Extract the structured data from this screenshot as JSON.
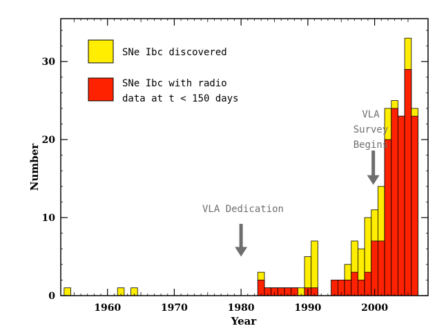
{
  "chart_data": {
    "type": "bar",
    "xlabel": "Year",
    "ylabel": "Number",
    "xlim": [
      1953,
      2008
    ],
    "ylim": [
      0,
      35.5
    ],
    "xticks": [
      1960,
      1970,
      1980,
      1990,
      2000
    ],
    "yticks": [
      0,
      10,
      20,
      30
    ],
    "colors": {
      "discovered": "#ffee00",
      "radio": "#ff2200",
      "annotation": "#6e6e6e"
    },
    "series": [
      {
        "name": "SNe Ibc discovered",
        "x": [
          1954,
          1962,
          1964,
          1983,
          1984,
          1985,
          1986,
          1987,
          1988,
          1989,
          1990,
          1991,
          1994,
          1995,
          1996,
          1997,
          1998,
          1999,
          2000,
          2001,
          2002,
          2003,
          2004,
          2005,
          2006
        ],
        "values": [
          1,
          1,
          1,
          3,
          1,
          1,
          1,
          1,
          1,
          1,
          5,
          7,
          2,
          2,
          4,
          7,
          6,
          10,
          11,
          14,
          24,
          25,
          23,
          33,
          24
        ]
      },
      {
        "name": "SNe Ibc with radio data at t < 150 days",
        "x": [
          1954,
          1962,
          1964,
          1983,
          1984,
          1985,
          1986,
          1987,
          1988,
          1989,
          1990,
          1991,
          1994,
          1995,
          1996,
          1997,
          1998,
          1999,
          2000,
          2001,
          2002,
          2003,
          2004,
          2005,
          2006
        ],
        "values": [
          0,
          0,
          0,
          2,
          1,
          1,
          1,
          1,
          1,
          0,
          1,
          1,
          2,
          2,
          2,
          3,
          2,
          3,
          7,
          7,
          20,
          24,
          23,
          29,
          23
        ]
      }
    ],
    "legend": {
      "position": "top-left",
      "entries": [
        "SNe Ibc discovered",
        "SNe Ibc with radio",
        "data at t < 150 days"
      ]
    },
    "annotations": [
      {
        "lines": [
          "VLA Dedication"
        ],
        "x": 1980,
        "arrow_top": 9.2,
        "arrow_bottom": 5
      },
      {
        "lines": [
          "VLA",
          "Survey",
          "Begins"
        ],
        "x": 1999.8,
        "arrow_top": 18.6,
        "arrow_bottom": 14.2
      }
    ]
  }
}
